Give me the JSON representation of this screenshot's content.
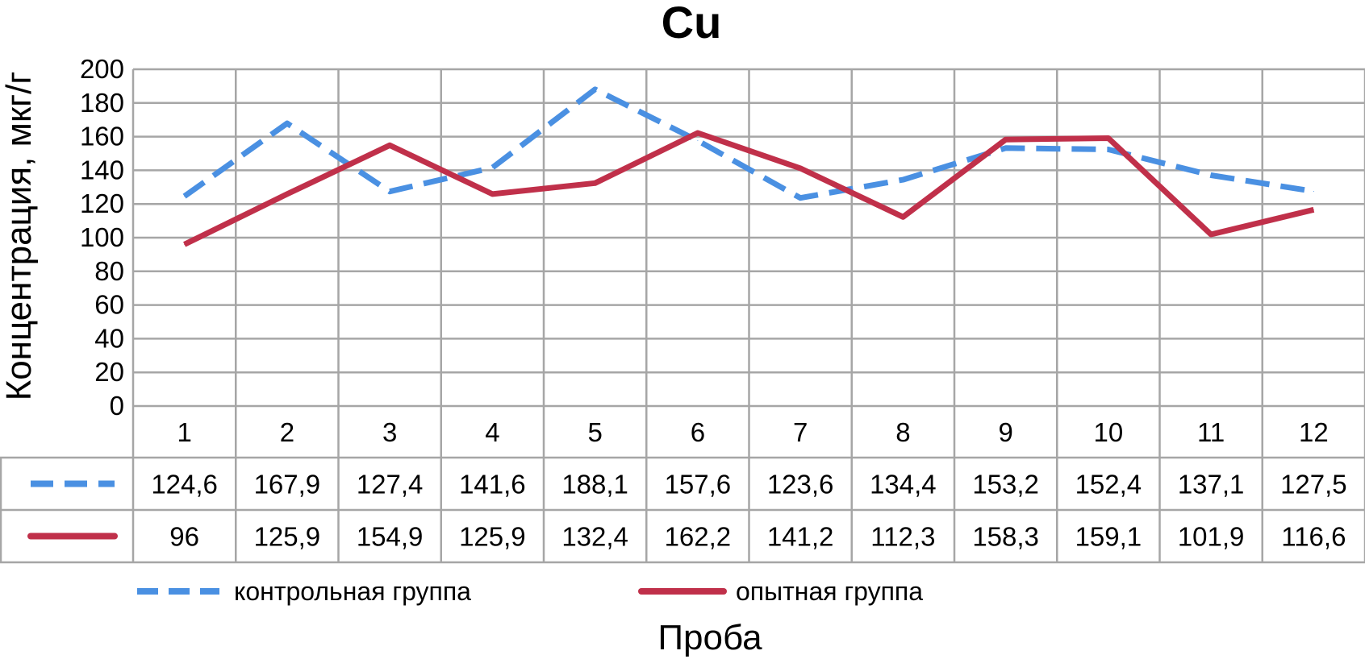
{
  "chart_data": {
    "type": "line",
    "title": "Cu",
    "xlabel": "Проба",
    "ylabel": "Концентрация, мкг/г",
    "categories": [
      "1",
      "2",
      "3",
      "4",
      "5",
      "6",
      "7",
      "8",
      "9",
      "10",
      "11",
      "12"
    ],
    "ylim": [
      0,
      200
    ],
    "yticks": [
      "0",
      "20",
      "40",
      "60",
      "80",
      "100",
      "120",
      "140",
      "160",
      "180",
      "200"
    ],
    "grid": true,
    "legend_position": "bottom",
    "series": [
      {
        "name": "контрольная группа",
        "color": "#4a90e2",
        "line_style": "dashed",
        "values": [
          124.6,
          167.9,
          127.4,
          141.6,
          188.1,
          157.6,
          123.6,
          134.4,
          153.2,
          152.4,
          137.1,
          127.5
        ],
        "labels": [
          "124,6",
          "167,9",
          "127,4",
          "141,6",
          "188,1",
          "157,6",
          "123,6",
          "134,4",
          "153,2",
          "152,4",
          "137,1",
          "127,5"
        ]
      },
      {
        "name": "опытная группа",
        "color": "#c0304a",
        "line_style": "solid",
        "values": [
          96,
          125.9,
          154.9,
          125.9,
          132.4,
          162.2,
          141.2,
          112.3,
          158.3,
          159.1,
          101.9,
          116.6
        ],
        "labels": [
          "96",
          "125,9",
          "154,9",
          "125,9",
          "132,4",
          "162,2",
          "141,2",
          "112,3",
          "158,3",
          "159,1",
          "101,9",
          "116,6"
        ]
      }
    ]
  }
}
